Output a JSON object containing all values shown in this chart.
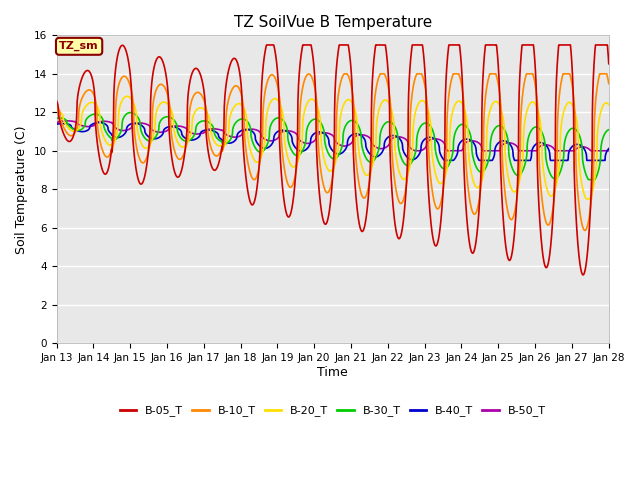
{
  "title": "TZ SoilVue B Temperature",
  "xlabel": "Time",
  "ylabel": "Soil Temperature (C)",
  "ylim": [
    0,
    16
  ],
  "yticks": [
    0,
    2,
    4,
    6,
    8,
    10,
    12,
    14,
    16
  ],
  "xtick_labels": [
    "Jan 13",
    "Jan 14",
    "Jan 15",
    "Jan 16",
    "Jan 17",
    "Jan 18",
    "Jan 19",
    "Jan 20",
    "Jan 21",
    "Jan 22",
    "Jan 23",
    "Jan 24",
    "Jan 25",
    "Jan 26",
    "Jan 27",
    "Jan 28"
  ],
  "annotation_label": "TZ_sm",
  "series": {
    "B-05_T": {
      "color": "#cc0000"
    },
    "B-10_T": {
      "color": "#ff8800"
    },
    "B-20_T": {
      "color": "#ffdd00"
    },
    "B-30_T": {
      "color": "#00cc00"
    },
    "B-40_T": {
      "color": "#0000cc"
    },
    "B-50_T": {
      "color": "#aa00aa"
    }
  },
  "background_color": "#ffffff",
  "plot_bg_color": "#e8e8e8",
  "grid_color": "#ffffff"
}
